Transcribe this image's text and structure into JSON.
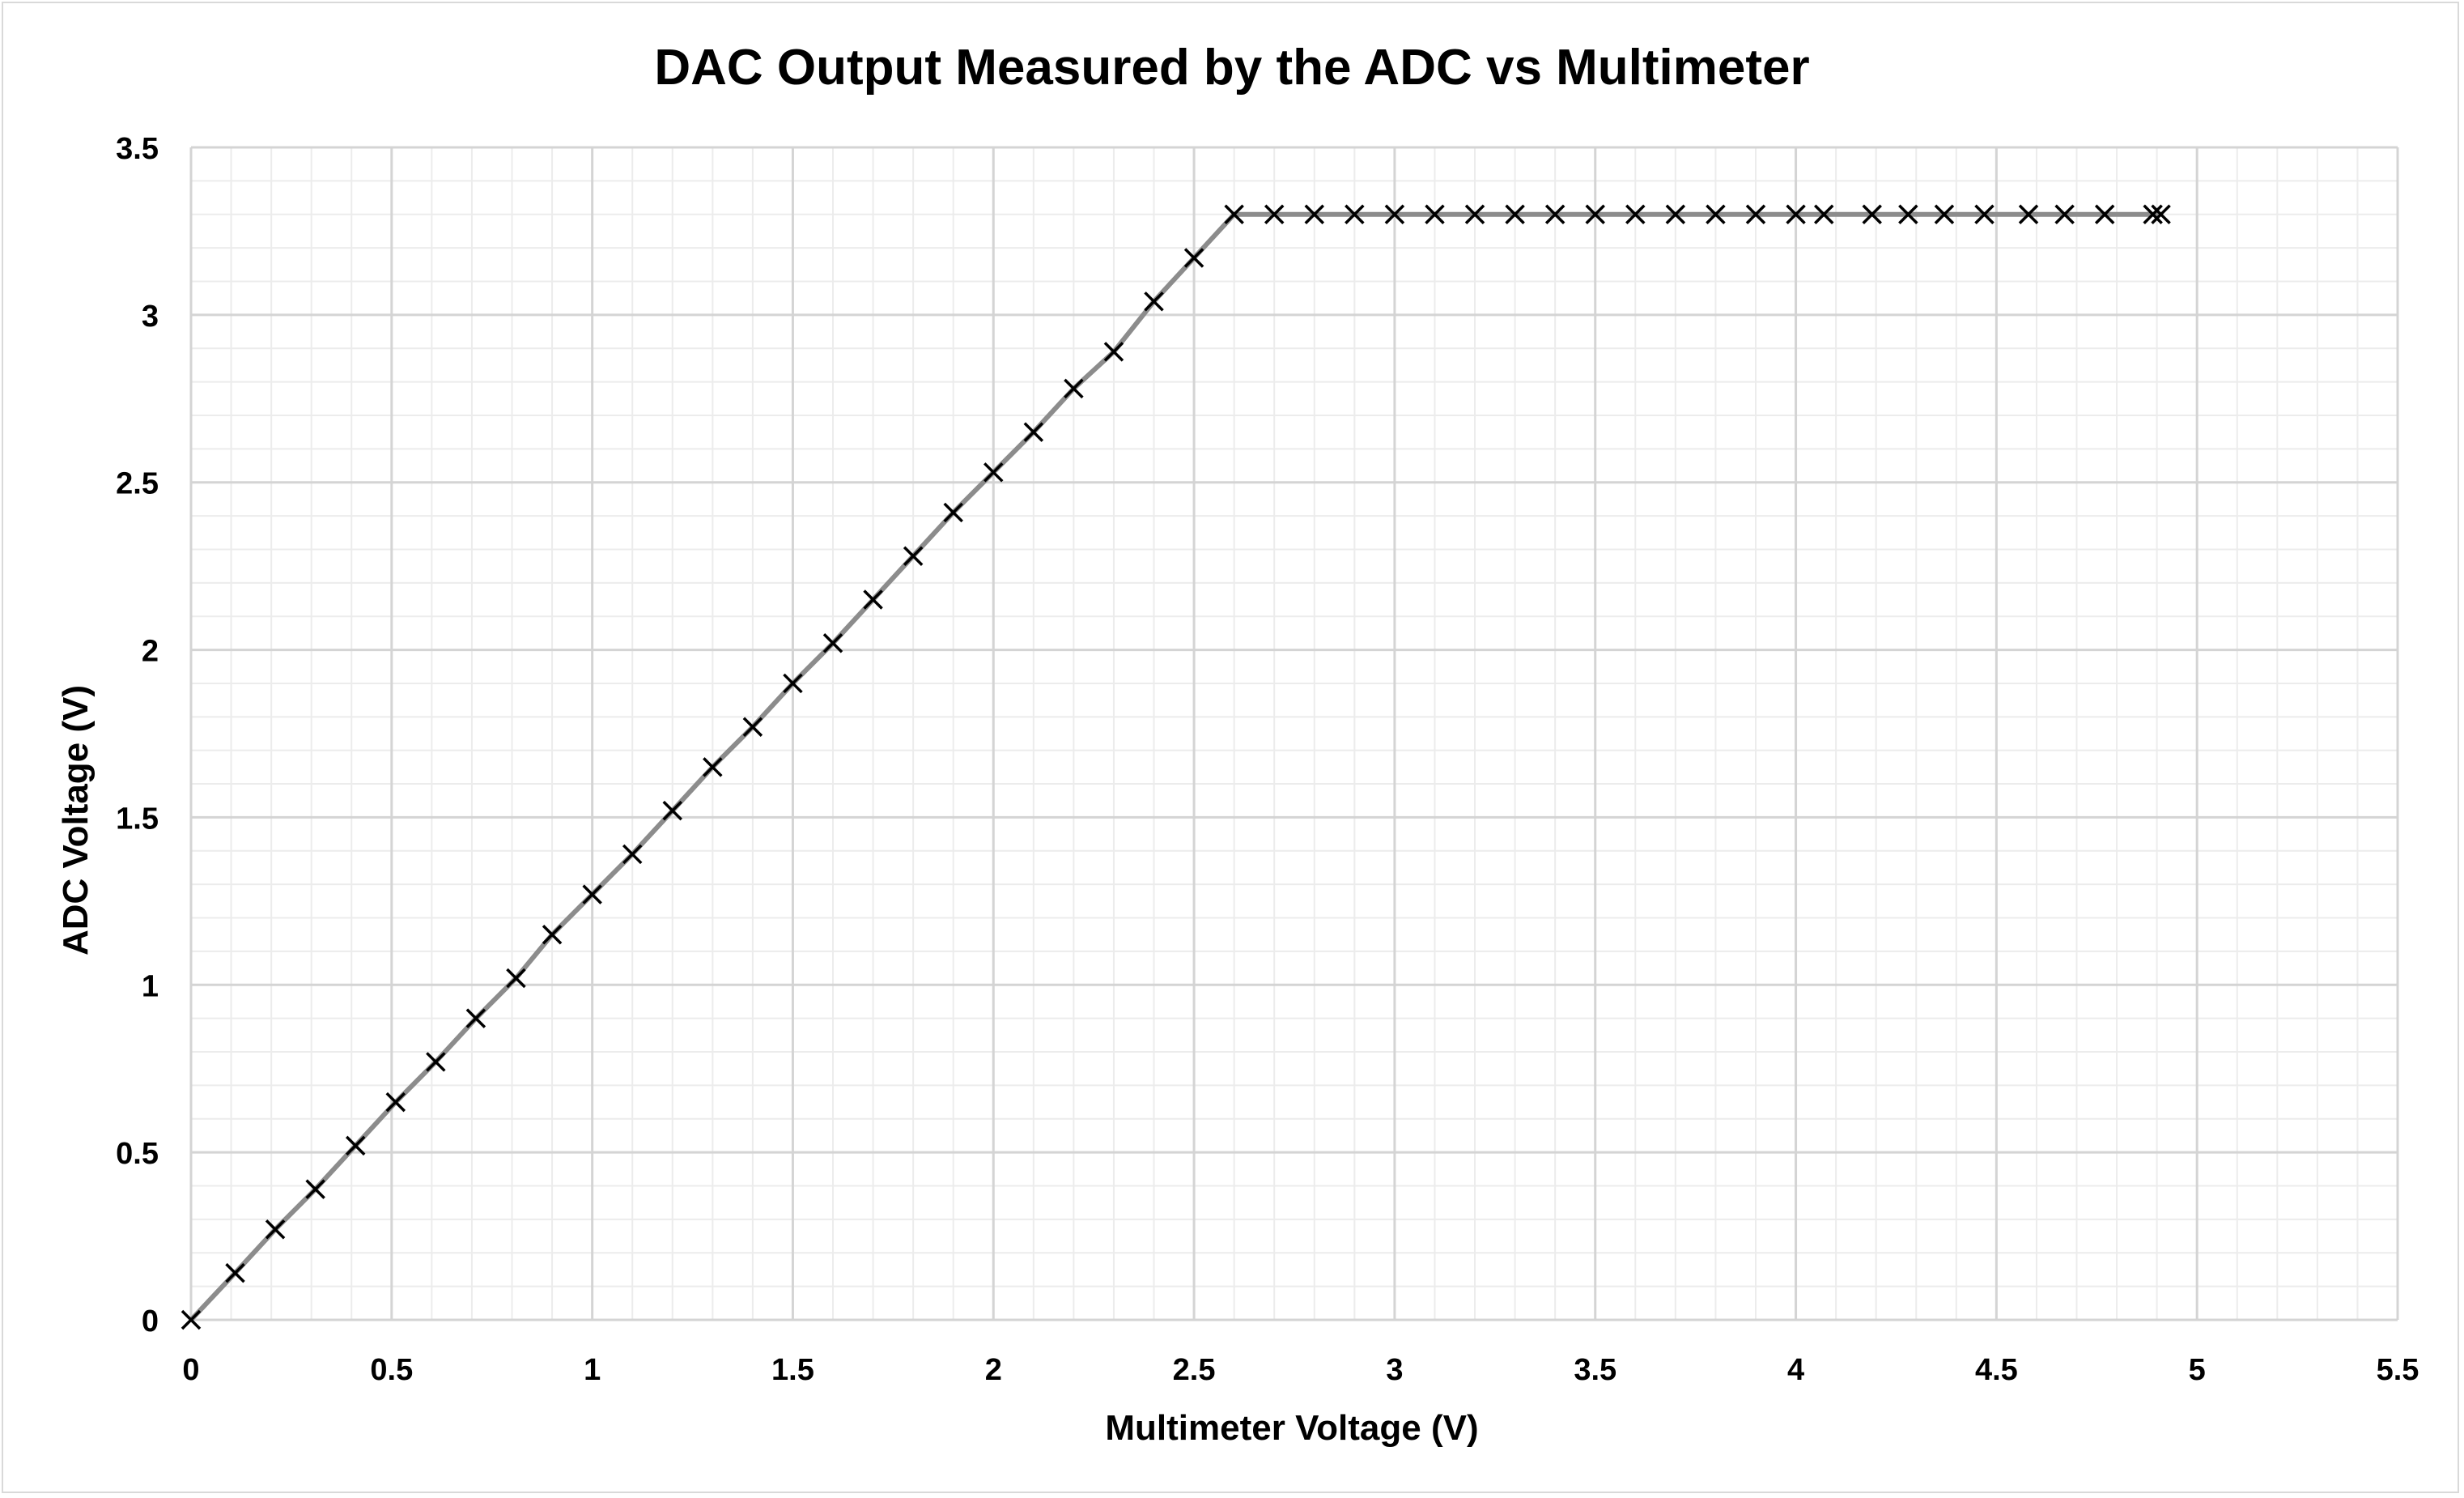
{
  "chart_data": {
    "type": "line",
    "title": "DAC Output Measured by the ADC vs Multimeter",
    "xlabel": "Multimeter Voltage (V)",
    "ylabel": "ADC Voltage (V)",
    "xlim": [
      0,
      5.5
    ],
    "ylim": [
      0,
      3.5
    ],
    "x_ticks": [
      0,
      0.5,
      1,
      1.5,
      2,
      2.5,
      3,
      3.5,
      4,
      4.5,
      5,
      5.5
    ],
    "x_tick_labels": [
      "0",
      "0.5",
      "1",
      "1.5",
      "2",
      "2.5",
      "3",
      "3.5",
      "4",
      "4.5",
      "5",
      "5.5"
    ],
    "y_ticks": [
      0,
      0.5,
      1,
      1.5,
      2,
      2.5,
      3,
      3.5
    ],
    "y_tick_labels": [
      "0",
      "0.5",
      "1",
      "1.5",
      "2",
      "2.5",
      "3",
      "3.5"
    ],
    "grid": "major and minor",
    "legend": "none",
    "line_color": "#8c8c8c",
    "marker": "x",
    "marker_color": "#000000",
    "series": [
      {
        "points": [
          [
            0,
            0
          ],
          [
            0.11,
            0.14
          ],
          [
            0.21,
            0.27
          ],
          [
            0.31,
            0.39
          ],
          [
            0.41,
            0.52
          ],
          [
            0.51,
            0.65
          ],
          [
            0.61,
            0.77
          ],
          [
            0.71,
            0.9
          ],
          [
            0.81,
            1.02
          ],
          [
            0.9,
            1.15
          ],
          [
            1.0,
            1.27
          ],
          [
            1.1,
            1.39
          ],
          [
            1.2,
            1.52
          ],
          [
            1.3,
            1.65
          ],
          [
            1.4,
            1.77
          ],
          [
            1.5,
            1.9
          ],
          [
            1.6,
            2.02
          ],
          [
            1.7,
            2.15
          ],
          [
            1.8,
            2.28
          ],
          [
            1.9,
            2.41
          ],
          [
            2.0,
            2.53
          ],
          [
            2.1,
            2.65
          ],
          [
            2.2,
            2.78
          ],
          [
            2.3,
            2.89
          ],
          [
            2.4,
            3.04
          ],
          [
            2.5,
            3.17
          ],
          [
            2.6,
            3.3
          ],
          [
            2.7,
            3.3
          ],
          [
            2.8,
            3.3
          ],
          [
            2.9,
            3.3
          ],
          [
            3.0,
            3.3
          ],
          [
            3.1,
            3.3
          ],
          [
            3.2,
            3.3
          ],
          [
            3.3,
            3.3
          ],
          [
            3.4,
            3.3
          ],
          [
            3.5,
            3.3
          ],
          [
            3.6,
            3.3
          ],
          [
            3.7,
            3.3
          ],
          [
            3.8,
            3.3
          ],
          [
            3.9,
            3.3
          ],
          [
            4.0,
            3.3
          ],
          [
            4.07,
            3.3
          ],
          [
            4.19,
            3.3
          ],
          [
            4.28,
            3.3
          ],
          [
            4.37,
            3.3
          ],
          [
            4.47,
            3.3
          ],
          [
            4.58,
            3.3
          ],
          [
            4.67,
            3.3
          ],
          [
            4.77,
            3.3
          ],
          [
            4.89,
            3.3
          ],
          [
            4.91,
            3.3
          ]
        ]
      }
    ]
  }
}
